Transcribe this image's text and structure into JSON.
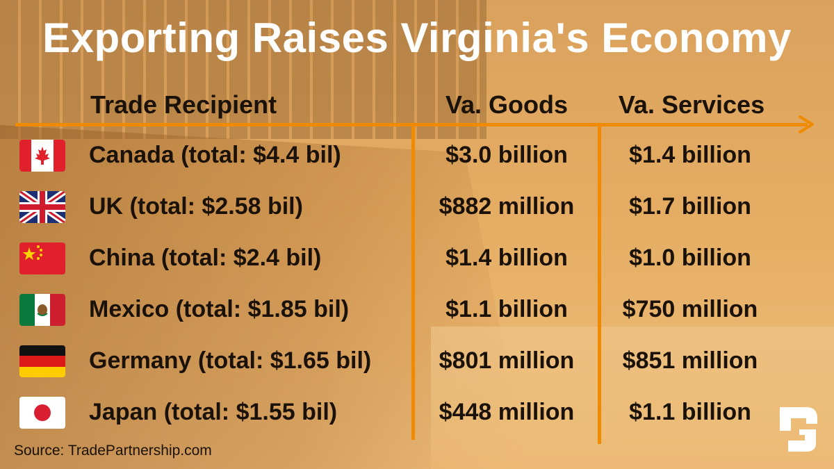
{
  "title": "Exporting Raises Virginia's Economy",
  "headers": {
    "recipient": "Trade Recipient",
    "goods": "Va. Goods",
    "services": "Va. Services"
  },
  "rows": [
    {
      "flag": "canada-flag-icon",
      "country": "Canada (total: $4.4 bil)",
      "goods": "$3.0 billion",
      "services": "$1.4 billion"
    },
    {
      "flag": "uk-flag-icon",
      "country": "UK (total: $2.58 bil)",
      "goods": "$882 million",
      "services": "$1.7 billion"
    },
    {
      "flag": "china-flag-icon",
      "country": "China (total: $2.4 bil)",
      "goods": "$1.4 billion",
      "services": "$1.0 billion"
    },
    {
      "flag": "mexico-flag-icon",
      "country": "Mexico (total: $1.85 bil)",
      "goods": "$1.1 billion",
      "services": "$750 million"
    },
    {
      "flag": "germany-flag-icon",
      "country": "Germany (total: $1.65 bil)",
      "goods": "$801 million",
      "services": "$851 million"
    },
    {
      "flag": "japan-flag-icon",
      "country": "Japan (total: $1.55 bil)",
      "goods": "$448 million",
      "services": "$1.1 billion"
    }
  ],
  "source": "Source: TradePartnership.com",
  "colors": {
    "accent": "#f08a00",
    "background": "#e5ad63",
    "text": "#1a1108",
    "title": "#ffffff"
  },
  "logo_icon": "brand-logo-icon"
}
